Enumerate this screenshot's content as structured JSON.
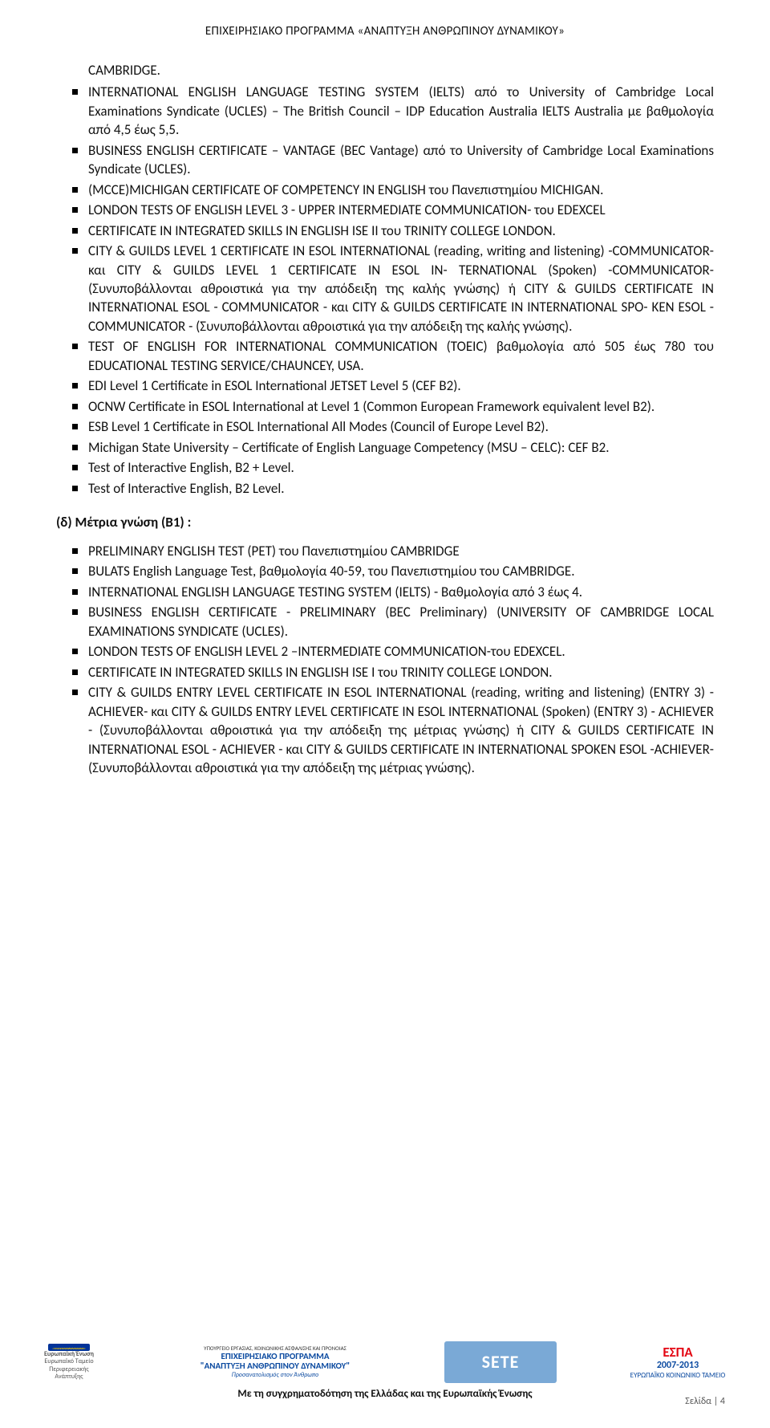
{
  "header": "ΕΠΙΧΕΙΡΗΣΙΑΚΟ ΠΡΟΓΡΑΜΜΑ «ΑΝΑΠΤΥΞΗ ΑΝΘΡΩΠΙΝΟΥ ΔΥΝΑΜΙΚΟΥ»",
  "lead_in": "CAMBRIDGE.",
  "list_c": [
    "INTERNATIONAL ENGLISH LANGUAGE TESTING SYSTEM (IELTS) από το University of Cambridge Local Examinations Syndicate (UCLES) – The British Council – IDP Education Australia IELTS Australia με βαθμολογία από 4,5 έως 5,5.",
    "BUSINESS ENGLISH CERTIFICATE – VANTAGE (BEC Vantage) από το University of Cambridge Local Examinations Syndicate (UCLES).",
    "(MCCE)MICHIGAN CERTIFICATE OF COMPETENCY IN ENGLISH του Πανεπιστημίου MICHIGAN.",
    "LONDON TESTS OF ENGLISH LEVEL 3 - UPPER INTERMEDIATE COMMUNICATION- του EDEXCEL",
    "CERTIFICATE IN INTEGRATED SKILLS IN ENGLISH ISE II του TRINITY COLLEGE LONDON.",
    "CITY & GUILDS LEVEL 1 CERTIFICATE IN ESOL INTERNATIONAL (reading, writing and listening) -COMMUNICATOR- και CITY & GUILDS LEVEL 1 CERTIFICATE IN ESOL IN- TERNATIONAL (Spoken) -COMMUNICATOR- (Συνυποβάλλονται αθροιστικά για την απόδειξη της καλής γνώσης) ή CITY & GUILDS CERTIFICATE IN INTERNATIONAL ESOL - COMMUNICATOR - και CITY & GUILDS CERTIFICATE IN INTERNATIONAL SPO- KEN ESOL - COMMUNICATOR - (Συνυποβάλλονται αθροιστικά για την απόδειξη της καλής γνώσης).",
    "TEST OF ENGLISH FOR INTERNATIONAL COMMUNICATION (TOEIC) βαθμολογία από 505 έως 780 του EDUCATIONAL TESTING SERVICE/CHAUNCEY, USA.",
    "EDI Level 1 Certificate in ESOL International JETSET Level 5 (CEF B2).",
    "OCNW Certificate in ESOL International at Level 1 (Common European Framework equivalent level B2).",
    "ESB Level 1 Certificate in ESOL International All Modes (Council of Europe Level B2).",
    "Michigan State University – Certificate of English Language Competency (MSU – CELC): CEF B2.",
    "Test of Interactive English, B2 + Level.",
    "Test of Interactive English, B2 Level."
  ],
  "section_d_title": "(δ) Μέτρια γνώση (Β1) :",
  "list_d": [
    "PRELIMINARY ENGLISH TEST (PET) του Πανεπιστημίου CAMBRIDGE",
    "BULATS English Language Test, βαθμολογία 40-59, του Πανεπιστημίου του CAMBRIDGE.",
    "INTERNATIONAL ENGLISH LANGUAGE TESTING SYSTEM (IELTS) - Βαθμολογία από 3 έως 4.",
    "BUSINESS ENGLISH CERTIFICATE - PRELIMINARY (BEC Preliminary) (UNIVERSITY OF CAMBRIDGE LOCAL EXAMINATIONS SYNDICATE (UCLES).",
    "LONDON TESTS OF ENGLISH LEVEL 2 –INTERMEDIATE COMMUNICATION-του EDEXCEL.",
    "CERTIFICATE IN INTEGRATED SKILLS IN ENGLISH ISE I του TRINITY COLLEGE LONDON.",
    "CITY & GUILDS ENTRY LEVEL CERTIFICATE IN ESOL INTERNATIONAL (reading, writing and listening) (ENTRY 3) - ACHIEVER- και CITY & GUILDS ENTRY LEVEL CERTIFICATE IN ESOL INTERNATIONAL (Spoken) (ENTRY 3) - ACHIEVER - (Συνυποβάλλονται αθροιστικά για την απόδειξη της μέτριας γνώσης) ή CITY & GUILDS CERTIFICATE IN INTERNATIONAL ESOL - ACHIEVER - και CITY & GUILDS CERTIFICATE IN INTERNATIONAL SPOKEN ESOL -ACHIEVER- (Συνυποβάλλονται αθροιστικά για την απόδειξη της μέτριας γνώσης)."
  ],
  "footer": {
    "eu_line1": "Ευρωπαϊκή Ένωση",
    "eu_line2": "Ευρωπαϊκό Ταμείο Περιφερειακής Ανάπτυξης",
    "prog_top": "ΥΠΟΥΡΓΕΙΟ ΕΡΓΑΣΙΑΣ, ΚΟΙΝΩΝΙΚΗΣ ΑΣΦΑΛΙΣΗΣ ΚΑΙ ΠΡΟΝΟΙΑΣ",
    "prog_mid1": "ΕΠΙΧΕΙΡΗΣΙΑΚΟ ΠΡΟΓΡΑΜΜΑ",
    "prog_mid2": "\"ΑΝΑΠΤΥΞΗ ΑΝΘΡΩΠΙΝΟΥ ΔΥΝΑΜΙΚΟΥ\"",
    "prog_sub": "Προσανατολισμός στον Άνθρωπο",
    "sete": "SETE",
    "espa_t": "ΕΣΠΑ",
    "espa_y": "2007-2013",
    "espa_s": "ΕΥΡΩΠΑΪΚΟ ΚΟΙΝΩΝΙΚΟ ΤΑΜΕΙΟ",
    "caption": "Με τη συγχρηματοδότηση της Ελλάδας και της Ευρωπαϊκής Ένωσης",
    "page_num": "Σελίδα | 4"
  }
}
